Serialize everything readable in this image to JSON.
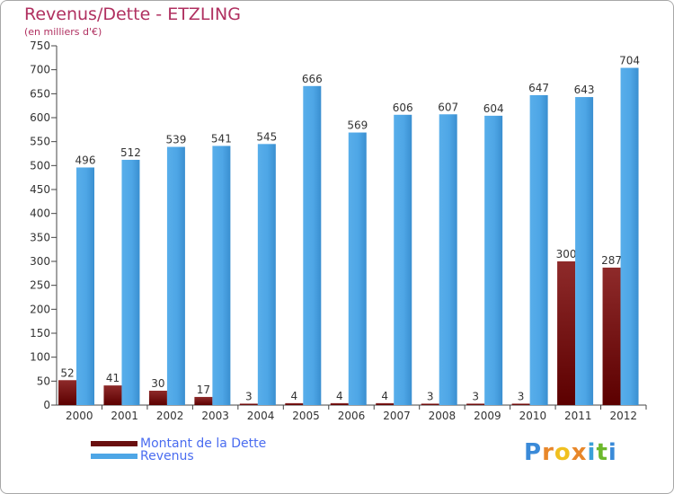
{
  "chart_data": {
    "type": "bar",
    "title": "Revenus/Dette - ETZLING",
    "subtitle": "(en milliers d'€)",
    "categories": [
      "2000",
      "2001",
      "2002",
      "2003",
      "2004",
      "2005",
      "2006",
      "2007",
      "2008",
      "2009",
      "2010",
      "2011",
      "2012"
    ],
    "series": [
      {
        "name": "Montant de la Dette",
        "values": [
          52,
          41,
          30,
          17,
          3,
          4,
          4,
          4,
          3,
          3,
          3,
          300,
          287
        ],
        "color": "#7a1c1c"
      },
      {
        "name": "Revenus",
        "values": [
          496,
          512,
          539,
          541,
          545,
          666,
          569,
          606,
          607,
          604,
          647,
          643,
          704
        ],
        "color": "#4ea6e6"
      }
    ],
    "ylim": [
      0,
      750
    ],
    "yticks": [
      0,
      50,
      100,
      150,
      200,
      250,
      300,
      350,
      400,
      450,
      500,
      550,
      600,
      650,
      700,
      750
    ],
    "grid": false,
    "legend_position": "bottom-left"
  },
  "logo": {
    "text": "Proxiti",
    "letters": [
      {
        "ch": "P",
        "color": "#3a8ad8"
      },
      {
        "ch": "r",
        "color": "#e8872a"
      },
      {
        "ch": "o",
        "color": "#f0c020"
      },
      {
        "ch": "x",
        "color": "#e8872a"
      },
      {
        "ch": "i",
        "color": "#3aa0d8"
      },
      {
        "ch": "t",
        "color": "#6cb82c"
      },
      {
        "ch": "i",
        "color": "#3a8ad8"
      }
    ]
  }
}
